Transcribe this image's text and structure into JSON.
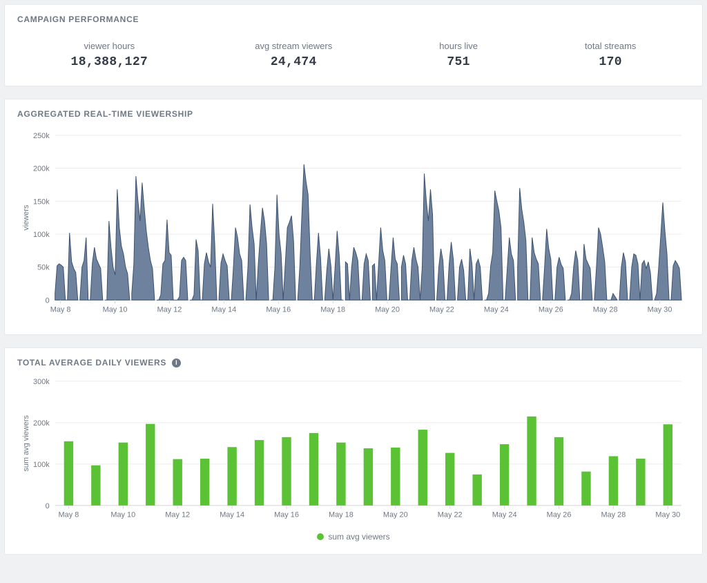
{
  "colors": {
    "panel_bg": "#ffffff",
    "page_bg": "#f0f1f3",
    "border": "#e5e7ea",
    "title_text": "#6f7885",
    "stat_value": "#333a45",
    "grid": "#ececec",
    "axis": "#d7d9dd",
    "tick_text": "#6f7885",
    "area_fill": "#5b718f",
    "area_stroke": "#3c5270",
    "bar_fill": "#5bc236"
  },
  "performance": {
    "title": "CAMPAIGN PERFORMANCE",
    "stats": [
      {
        "label": "viewer hours",
        "value": "18,388,127"
      },
      {
        "label": "avg stream viewers",
        "value": "24,474"
      },
      {
        "label": "hours live",
        "value": "751"
      },
      {
        "label": "total streams",
        "value": "170"
      }
    ]
  },
  "viewership_chart": {
    "title": "AGGREGATED REAL-TIME VIEWERSHIP",
    "type": "area",
    "y_axis_label": "viewers",
    "y_ticks": [
      0,
      50,
      100,
      150,
      200,
      250
    ],
    "y_tick_suffix": "k",
    "ylim": [
      0,
      250
    ],
    "x_categories": [
      "May 8",
      "May 10",
      "May 12",
      "May 14",
      "May 16",
      "May 18",
      "May 20",
      "May 22",
      "May 24",
      "May 26",
      "May 28",
      "May 30"
    ],
    "series": [
      [
        10,
        52,
        55,
        53,
        50,
        0,
        0,
        102,
        58,
        48,
        42,
        0
      ],
      [
        0,
        50,
        60,
        95,
        0,
        0,
        56,
        80,
        62,
        55,
        48,
        0
      ],
      [
        0,
        0,
        120,
        80,
        50,
        38,
        168,
        110,
        82,
        70,
        50,
        40,
        0
      ],
      [
        10,
        55,
        188,
        150,
        120,
        178,
        140,
        105,
        80,
        60,
        48,
        0
      ],
      [
        0,
        0,
        8,
        55,
        60,
        122,
        72,
        68,
        0,
        0,
        0,
        5,
        60,
        65,
        60,
        0
      ],
      [
        0,
        0,
        8,
        92,
        75,
        0,
        0,
        55,
        72,
        58,
        50,
        146,
        85,
        0
      ],
      [
        0,
        56,
        70,
        60,
        52,
        0,
        0,
        50,
        110,
        95,
        70,
        60,
        0
      ],
      [
        0,
        50,
        145,
        110,
        85,
        0,
        55,
        100,
        140,
        120,
        85,
        0
      ],
      [
        0,
        0,
        50,
        160,
        100,
        70,
        0,
        55,
        110,
        118,
        128,
        90,
        0
      ],
      [
        0,
        50,
        130,
        206,
        180,
        160,
        70,
        0,
        0,
        55,
        102,
        65,
        0
      ],
      [
        0,
        45,
        78,
        52,
        0,
        50,
        105,
        68,
        0,
        0
      ],
      [
        58,
        55,
        0,
        50,
        80,
        72,
        60,
        0,
        0,
        55,
        70,
        60,
        0
      ],
      [
        52,
        55,
        0,
        55,
        110,
        75,
        60,
        0,
        0,
        50,
        95,
        62,
        55,
        0
      ],
      [
        50,
        68,
        55,
        0,
        0,
        60,
        80,
        62,
        50,
        0,
        50,
        192,
        150,
        120,
        168,
        130,
        0
      ],
      [
        0,
        50,
        78,
        60,
        0,
        0,
        55,
        88,
        62,
        0
      ],
      [
        0,
        50,
        62,
        45,
        0,
        0,
        78,
        55,
        0,
        55,
        62,
        50,
        0
      ],
      [
        0,
        0,
        10,
        52,
        72,
        166,
        150,
        135,
        110,
        0,
        0,
        48,
        95,
        70,
        60,
        0
      ],
      [
        50,
        170,
        138,
        118,
        90,
        0,
        0,
        95,
        72,
        62,
        55,
        0
      ],
      [
        0,
        50,
        108,
        78,
        62,
        0,
        0,
        50,
        65,
        54,
        48,
        0
      ],
      [
        0,
        0,
        10,
        50,
        75,
        60,
        0,
        0,
        85,
        62,
        55,
        48,
        0
      ],
      [
        0,
        50,
        110,
        100,
        80,
        58,
        0,
        0,
        0,
        10,
        5,
        0
      ],
      [
        0,
        50,
        72,
        58,
        0,
        0,
        50,
        70,
        68,
        55,
        0,
        55,
        60,
        48,
        58,
        42,
        0
      ],
      [
        0,
        10,
        50,
        98,
        148,
        105,
        70,
        0,
        0,
        52,
        60,
        55,
        48,
        0
      ]
    ],
    "area_fill": "#5b718f",
    "area_stroke": "#3c5270",
    "area_opacity": 0.88,
    "background_color": "#ffffff",
    "grid_color": "#ececec",
    "font_size": 11
  },
  "daily_chart": {
    "title": "TOTAL AVERAGE DAILY VIEWERS",
    "info_tooltip": "i",
    "type": "bar",
    "y_axis_label": "sum avg viewers",
    "y_ticks": [
      0,
      100,
      200,
      300
    ],
    "y_tick_suffix": "k",
    "ylim": [
      0,
      300
    ],
    "x_tick_categories": [
      "May 8",
      "May 10",
      "May 12",
      "May 14",
      "May 16",
      "May 18",
      "May 20",
      "May 22",
      "May 24",
      "May 26",
      "May 28",
      "May 30"
    ],
    "bars": [
      {
        "day": "May 8",
        "value": 155
      },
      {
        "day": "May 9",
        "value": 97
      },
      {
        "day": "May 10",
        "value": 152
      },
      {
        "day": "May 11",
        "value": 197
      },
      {
        "day": "May 12",
        "value": 112
      },
      {
        "day": "May 13",
        "value": 113
      },
      {
        "day": "May 14",
        "value": 141
      },
      {
        "day": "May 15",
        "value": 158
      },
      {
        "day": "May 16",
        "value": 165
      },
      {
        "day": "May 17",
        "value": 175
      },
      {
        "day": "May 18",
        "value": 152
      },
      {
        "day": "May 19",
        "value": 138
      },
      {
        "day": "May 20",
        "value": 140
      },
      {
        "day": "May 21",
        "value": 183
      },
      {
        "day": "May 22",
        "value": 127
      },
      {
        "day": "May 23",
        "value": 75
      },
      {
        "day": "May 24",
        "value": 148
      },
      {
        "day": "May 25",
        "value": 215
      },
      {
        "day": "May 26",
        "value": 165
      },
      {
        "day": "May 27",
        "value": 82
      },
      {
        "day": "May 28",
        "value": 119
      },
      {
        "day": "May 29",
        "value": 113
      },
      {
        "day": "May 30",
        "value": 196
      }
    ],
    "bar_color": "#5bc236",
    "bar_width_ratio": 0.34,
    "legend_label": "sum avg viewers",
    "background_color": "#ffffff",
    "grid_color": "#ececec",
    "font_size": 11
  }
}
